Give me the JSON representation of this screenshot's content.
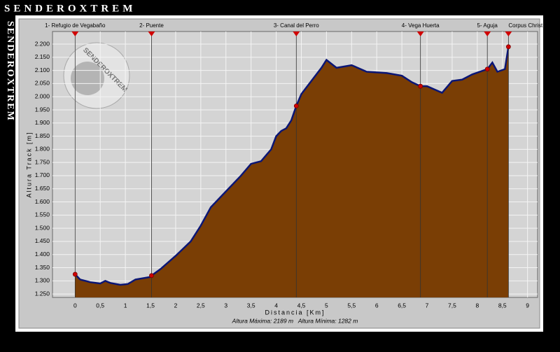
{
  "header": {
    "title": "SENDEROXTREM",
    "side_title": "SENDEROXTREM",
    "logo_text": "SENDEROXTREM"
  },
  "chart_data": {
    "type": "area",
    "xlabel": "Distancia [Km]",
    "ylabel": "Altura Track [m]",
    "footer": "Altura Máxima: 2189 m   Altura Mínima: 1282 m",
    "x": [
      0,
      0.1,
      0.3,
      0.5,
      0.6,
      0.7,
      0.9,
      1.05,
      1.2,
      1.5,
      1.52,
      1.7,
      2.0,
      2.3,
      2.5,
      2.7,
      3.0,
      3.3,
      3.5,
      3.7,
      3.9,
      4.0,
      4.1,
      4.2,
      4.3,
      4.4,
      4.5,
      4.7,
      4.9,
      5.0,
      5.2,
      5.5,
      5.8,
      6.2,
      6.5,
      6.7,
      6.87,
      7.0,
      7.3,
      7.5,
      7.7,
      7.9,
      8.2,
      8.3,
      8.4,
      8.55,
      8.62
    ],
    "values": [
      1325,
      1305,
      1295,
      1290,
      1300,
      1292,
      1285,
      1288,
      1305,
      1315,
      1320,
      1345,
      1395,
      1450,
      1510,
      1580,
      1640,
      1700,
      1745,
      1755,
      1800,
      1850,
      1870,
      1880,
      1910,
      1965,
      2010,
      2060,
      2110,
      2140,
      2110,
      2120,
      2095,
      2090,
      2080,
      2055,
      2040,
      2040,
      2015,
      2060,
      2065,
      2085,
      2105,
      2130,
      2095,
      2105,
      2190
    ],
    "color": "#7a3e05",
    "line_color": "#0b1675",
    "waypoints": {
      "labels": [
        "1- Refugio de Vegabaño",
        "2- Puente",
        "3- Canal del Perro",
        "4- Vega Huerta",
        "5- Aguja",
        "Corpus Christ"
      ],
      "x": [
        0,
        1.52,
        4.4,
        6.87,
        8.2,
        8.62
      ],
      "values": [
        1325,
        1320,
        1965,
        2040,
        2105,
        2190
      ],
      "color": "#d00000"
    },
    "xlim": [
      -0.45,
      9.2
    ],
    "ylim": [
      1237,
      2248
    ],
    "xticks": [
      0,
      {
        "value": 0.5,
        "label": "0,5"
      },
      1,
      {
        "value": 1.5,
        "label": "1,5"
      },
      2,
      {
        "value": 2.5,
        "label": "2,5"
      },
      3,
      {
        "value": 3.5,
        "label": "3,5"
      },
      4,
      {
        "value": 4.5,
        "label": "4,5"
      },
      5,
      {
        "value": 5.5,
        "label": "5,5"
      },
      6,
      {
        "value": 6.5,
        "label": "6,5"
      },
      7,
      {
        "value": 7.5,
        "label": "7,5"
      },
      8,
      {
        "value": 8.5,
        "label": "8,5"
      },
      9
    ],
    "yticks": [
      {
        "value": 1250,
        "label": "1.250"
      },
      {
        "value": 1300,
        "label": "1.300"
      },
      {
        "value": 1350,
        "label": "1.350"
      },
      {
        "value": 1400,
        "label": "1.400"
      },
      {
        "value": 1450,
        "label": "1.450"
      },
      {
        "value": 1500,
        "label": "1.500"
      },
      {
        "value": 1550,
        "label": "1.550"
      },
      {
        "value": 1600,
        "label": "1.600"
      },
      {
        "value": 1650,
        "label": "1.650"
      },
      {
        "value": 1700,
        "label": "1.700"
      },
      {
        "value": 1750,
        "label": "1.750"
      },
      {
        "value": 1800,
        "label": "1.800"
      },
      {
        "value": 1850,
        "label": "1.850"
      },
      {
        "value": 1900,
        "label": "1.900"
      },
      {
        "value": 1950,
        "label": "1.950"
      },
      {
        "value": 2000,
        "label": "2.000"
      },
      {
        "value": 2050,
        "label": "2.050"
      },
      {
        "value": 2100,
        "label": "2.100"
      },
      {
        "value": 2150,
        "label": "2.150"
      },
      {
        "value": 2200,
        "label": "2.200"
      }
    ],
    "grid": true
  }
}
